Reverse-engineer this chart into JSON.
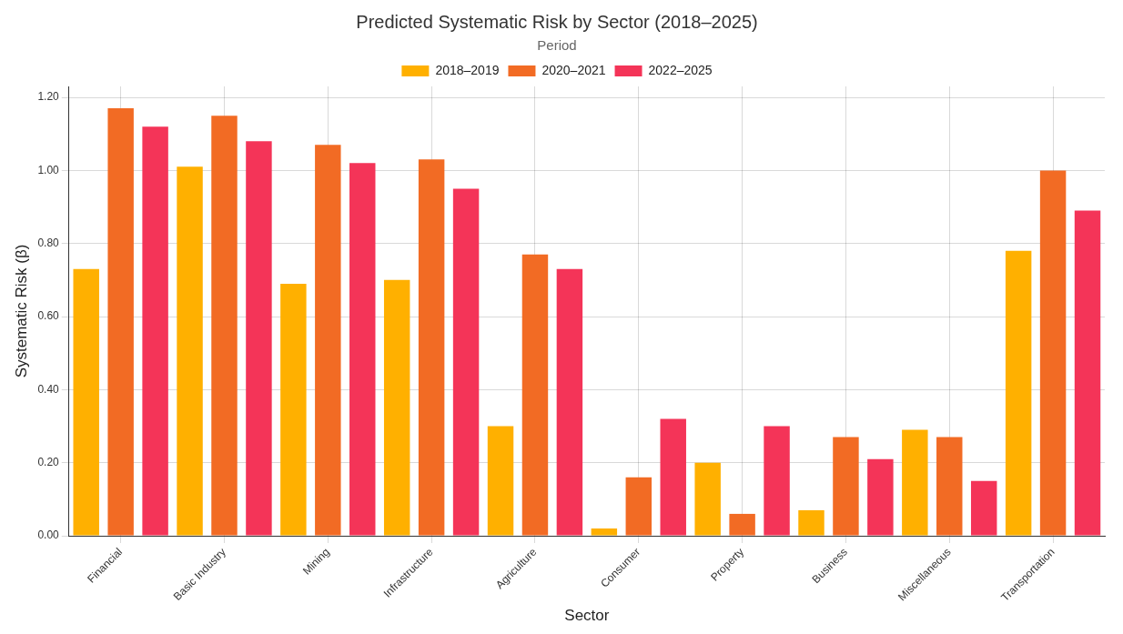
{
  "chart_data": {
    "type": "bar",
    "title": "Predicted Systematic Risk by Sector (2018–2025)",
    "xlabel": "Sector",
    "ylabel": "Systematic Risk (β)",
    "legend_title": "Period",
    "legend": "top",
    "grid": true,
    "categories": [
      "Financial",
      "Basic Industry",
      "Mining",
      "Infrastructure",
      "Agriculture",
      "Consumer",
      "Property",
      "Business",
      "Miscellaneous",
      "Transportation"
    ],
    "series": [
      {
        "name": "2018–2019",
        "color": "#ffb000",
        "values": [
          0.73,
          1.01,
          0.69,
          0.7,
          0.3,
          0.02,
          0.2,
          0.07,
          0.29,
          0.78
        ]
      },
      {
        "name": "2020–2021",
        "color": "#f26b24",
        "values": [
          1.17,
          1.15,
          1.07,
          1.03,
          0.77,
          0.16,
          0.06,
          0.27,
          0.27,
          1.0
        ]
      },
      {
        "name": "2022–2025",
        "color": "#f43458",
        "values": [
          1.12,
          1.08,
          1.02,
          0.95,
          0.73,
          0.32,
          0.3,
          0.21,
          0.15,
          0.89
        ]
      }
    ],
    "ylim": [
      0,
      1.23
    ],
    "yticks": [
      {
        "value": 0,
        "label": "0.00"
      },
      {
        "value": 0.2,
        "label": "0.20"
      },
      {
        "value": 0.4,
        "label": "0.40"
      },
      {
        "value": 0.6,
        "label": "0.60"
      },
      {
        "value": 0.8,
        "label": "0.80"
      },
      {
        "value": 1.0,
        "label": "1.00"
      },
      {
        "value": 1.2,
        "label": "1.20"
      }
    ]
  }
}
